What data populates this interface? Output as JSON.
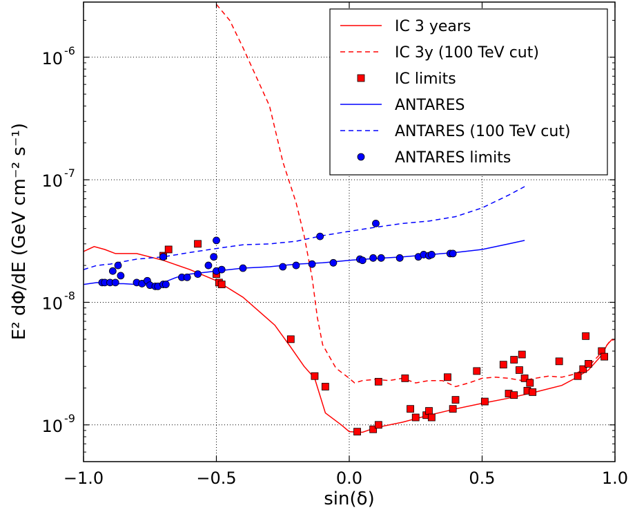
{
  "chart_data": {
    "type": "line",
    "xlabel": "sin(δ)",
    "ylabel": "E² dΦ/dE (GeV cm⁻² s⁻¹)",
    "xlim": [
      -1.0,
      1.0
    ],
    "ylim_log10": [
      -9.3,
      -5.55
    ],
    "yscale": "log",
    "grid": true,
    "legend_position": "top-right",
    "x_ticks": [
      {
        "value": -1.0,
        "label": "−1.0"
      },
      {
        "value": -0.5,
        "label": "−0.5"
      },
      {
        "value": 0.0,
        "label": "0.0"
      },
      {
        "value": 0.5,
        "label": "0.5"
      },
      {
        "value": 1.0,
        "label": "1.0"
      }
    ],
    "y_ticks": [
      {
        "exp": -9,
        "label": "10",
        "sup": "-9"
      },
      {
        "exp": -8,
        "label": "10",
        "sup": "-8"
      },
      {
        "exp": -7,
        "label": "10",
        "sup": "-7"
      },
      {
        "exp": -6,
        "label": "10",
        "sup": "-6"
      }
    ],
    "series": [
      {
        "name": "IC 3 years",
        "kind": "line",
        "color": "#ff0000",
        "dash": "solid",
        "points": [
          [
            -1.0,
            2.6e-08
          ],
          [
            -0.96,
            2.85e-08
          ],
          [
            -0.92,
            2.7e-08
          ],
          [
            -0.88,
            2.5e-08
          ],
          [
            -0.8,
            2.5e-08
          ],
          [
            -0.7,
            2.2e-08
          ],
          [
            -0.6,
            1.85e-08
          ],
          [
            -0.5,
            1.5e-08
          ],
          [
            -0.4,
            1.1e-08
          ],
          [
            -0.28,
            6.5e-09
          ],
          [
            -0.22,
            4.3e-09
          ],
          [
            -0.17,
            3e-09
          ],
          [
            -0.13,
            2.4e-09
          ],
          [
            -0.09,
            1.25e-09
          ],
          [
            -0.03,
            1e-09
          ],
          [
            0.0,
            8.8e-10
          ],
          [
            0.05,
            8.7e-10
          ],
          [
            0.1,
            9.5e-10
          ],
          [
            0.2,
            1.05e-09
          ],
          [
            0.3,
            1.2e-09
          ],
          [
            0.4,
            1.35e-09
          ],
          [
            0.5,
            1.5e-09
          ],
          [
            0.6,
            1.65e-09
          ],
          [
            0.7,
            1.85e-09
          ],
          [
            0.8,
            2.1e-09
          ],
          [
            0.85,
            2.4e-09
          ],
          [
            0.9,
            2.8e-09
          ],
          [
            0.95,
            3.7e-09
          ],
          [
            0.97,
            4.5e-09
          ],
          [
            0.99,
            5e-09
          ]
        ]
      },
      {
        "name": "IC 3y (100 TeV cut)",
        "kind": "line",
        "color": "#ff0000",
        "dash": "dashed",
        "points": [
          [
            -0.5,
            2.7e-06
          ],
          [
            -0.45,
            2e-06
          ],
          [
            -0.4,
            1.2e-06
          ],
          [
            -0.3,
            4e-07
          ],
          [
            -0.25,
            1.4e-07
          ],
          [
            -0.2,
            6.5e-08
          ],
          [
            -0.17,
            3.5e-08
          ],
          [
            -0.14,
            1.6e-08
          ],
          [
            -0.12,
            7.5e-09
          ],
          [
            -0.1,
            4.5e-09
          ],
          [
            -0.05,
            2.9e-09
          ],
          [
            0.0,
            2.4e-09
          ],
          [
            0.02,
            2.2e-09
          ],
          [
            0.05,
            2.3e-09
          ],
          [
            0.1,
            2.35e-09
          ],
          [
            0.15,
            2.3e-09
          ],
          [
            0.2,
            2.4e-09
          ],
          [
            0.25,
            2.2e-09
          ],
          [
            0.3,
            2.3e-09
          ],
          [
            0.35,
            2.3e-09
          ],
          [
            0.4,
            2.05e-09
          ],
          [
            0.45,
            2.2e-09
          ],
          [
            0.5,
            2.4e-09
          ],
          [
            0.55,
            2.45e-09
          ],
          [
            0.6,
            2.4e-09
          ],
          [
            0.65,
            2.3e-09
          ],
          [
            0.7,
            2.4e-09
          ],
          [
            0.75,
            2.5e-09
          ],
          [
            0.8,
            2.45e-09
          ],
          [
            0.85,
            2.6e-09
          ],
          [
            0.9,
            3e-09
          ],
          [
            0.95,
            3.9e-09
          ],
          [
            0.98,
            4.8e-09
          ],
          [
            1.0,
            5e-09
          ]
        ]
      },
      {
        "name": "IC limits",
        "kind": "markers",
        "marker": "square",
        "color": "#ff0000",
        "points": [
          [
            -0.7,
            2.4e-08
          ],
          [
            -0.68,
            2.7e-08
          ],
          [
            -0.57,
            3e-08
          ],
          [
            -0.5,
            1.7e-08
          ],
          [
            -0.49,
            1.45e-08
          ],
          [
            -0.48,
            1.4e-08
          ],
          [
            -0.22,
            5e-09
          ],
          [
            -0.13,
            2.5e-09
          ],
          [
            -0.09,
            2.05e-09
          ],
          [
            0.03,
            8.8e-10
          ],
          [
            0.09,
            9.2e-10
          ],
          [
            0.11,
            1e-09
          ],
          [
            0.11,
            2.25e-09
          ],
          [
            0.21,
            2.4e-09
          ],
          [
            0.23,
            1.35e-09
          ],
          [
            0.25,
            1.15e-09
          ],
          [
            0.29,
            1.2e-09
          ],
          [
            0.3,
            1.3e-09
          ],
          [
            0.31,
            1.15e-09
          ],
          [
            0.37,
            2.45e-09
          ],
          [
            0.39,
            1.35e-09
          ],
          [
            0.4,
            1.6e-09
          ],
          [
            0.48,
            2.75e-09
          ],
          [
            0.51,
            1.55e-09
          ],
          [
            0.58,
            3.1e-09
          ],
          [
            0.6,
            1.8e-09
          ],
          [
            0.62,
            1.75e-09
          ],
          [
            0.62,
            3.4e-09
          ],
          [
            0.64,
            2.8e-09
          ],
          [
            0.65,
            3.75e-09
          ],
          [
            0.66,
            2.4e-09
          ],
          [
            0.67,
            1.9e-09
          ],
          [
            0.68,
            2.2e-09
          ],
          [
            0.69,
            1.85e-09
          ],
          [
            0.79,
            3.3e-09
          ],
          [
            0.86,
            2.5e-09
          ],
          [
            0.88,
            2.85e-09
          ],
          [
            0.89,
            5.3e-09
          ],
          [
            0.9,
            3.15e-09
          ],
          [
            0.95,
            4e-09
          ],
          [
            0.96,
            3.6e-09
          ]
        ]
      },
      {
        "name": "ANTARES",
        "kind": "line",
        "color": "#0000ff",
        "dash": "solid",
        "points": [
          [
            -1.0,
            1.4e-08
          ],
          [
            -0.95,
            1.45e-08
          ],
          [
            -0.9,
            1.42e-08
          ],
          [
            -0.85,
            1.42e-08
          ],
          [
            -0.8,
            1.4e-08
          ],
          [
            -0.75,
            1.38e-08
          ],
          [
            -0.7,
            1.45e-08
          ],
          [
            -0.65,
            1.6e-08
          ],
          [
            -0.6,
            1.7e-08
          ],
          [
            -0.5,
            1.8e-08
          ],
          [
            -0.4,
            1.9e-08
          ],
          [
            -0.3,
            1.95e-08
          ],
          [
            -0.2,
            2.05e-08
          ],
          [
            -0.1,
            2.1e-08
          ],
          [
            0.0,
            2.2e-08
          ],
          [
            0.1,
            2.28e-08
          ],
          [
            0.2,
            2.35e-08
          ],
          [
            0.3,
            2.45e-08
          ],
          [
            0.4,
            2.55e-08
          ],
          [
            0.5,
            2.7e-08
          ],
          [
            0.6,
            3e-08
          ],
          [
            0.66,
            3.2e-08
          ]
        ]
      },
      {
        "name": "ANTARES (100 TeV cut)",
        "kind": "line",
        "color": "#0000ff",
        "dash": "dashed",
        "points": [
          [
            -1.0,
            1.85e-08
          ],
          [
            -0.95,
            2e-08
          ],
          [
            -0.9,
            2.05e-08
          ],
          [
            -0.85,
            2.15e-08
          ],
          [
            -0.8,
            2.25e-08
          ],
          [
            -0.7,
            2.35e-08
          ],
          [
            -0.6,
            2.55e-08
          ],
          [
            -0.5,
            2.75e-08
          ],
          [
            -0.4,
            2.95e-08
          ],
          [
            -0.3,
            3e-08
          ],
          [
            -0.2,
            3.15e-08
          ],
          [
            -0.1,
            3.5e-08
          ],
          [
            0.0,
            3.8e-08
          ],
          [
            0.1,
            4.1e-08
          ],
          [
            0.2,
            4.4e-08
          ],
          [
            0.3,
            4.6e-08
          ],
          [
            0.4,
            5e-08
          ],
          [
            0.5,
            5.9e-08
          ],
          [
            0.6,
            7.5e-08
          ],
          [
            0.66,
            8.8e-08
          ]
        ]
      },
      {
        "name": "ANTARES limits",
        "kind": "markers",
        "marker": "circle",
        "color": "#0000ff",
        "points": [
          [
            -0.93,
            1.45e-08
          ],
          [
            -0.92,
            1.45e-08
          ],
          [
            -0.9,
            1.45e-08
          ],
          [
            -0.89,
            1.8e-08
          ],
          [
            -0.87,
            2e-08
          ],
          [
            -0.86,
            1.65e-08
          ],
          [
            -0.88,
            1.45e-08
          ],
          [
            -0.8,
            1.45e-08
          ],
          [
            -0.78,
            1.42e-08
          ],
          [
            -0.76,
            1.5e-08
          ],
          [
            -0.75,
            1.38e-08
          ],
          [
            -0.73,
            1.35e-08
          ],
          [
            -0.72,
            1.35e-08
          ],
          [
            -0.7,
            1.4e-08
          ],
          [
            -0.69,
            1.4e-08
          ],
          [
            -0.7,
            2.35e-08
          ],
          [
            -0.63,
            1.6e-08
          ],
          [
            -0.61,
            1.6e-08
          ],
          [
            -0.57,
            1.7e-08
          ],
          [
            -0.53,
            2e-08
          ],
          [
            -0.51,
            2.35e-08
          ],
          [
            -0.5,
            3.2e-08
          ],
          [
            -0.5,
            1.8e-08
          ],
          [
            -0.48,
            1.85e-08
          ],
          [
            -0.4,
            1.9e-08
          ],
          [
            -0.25,
            1.95e-08
          ],
          [
            -0.2,
            2e-08
          ],
          [
            -0.14,
            2.05e-08
          ],
          [
            -0.11,
            3.45e-08
          ],
          [
            -0.06,
            2.1e-08
          ],
          [
            0.04,
            2.25e-08
          ],
          [
            0.05,
            2.2e-08
          ],
          [
            0.09,
            2.3e-08
          ],
          [
            0.1,
            4.4e-08
          ],
          [
            0.12,
            2.3e-08
          ],
          [
            0.19,
            2.3e-08
          ],
          [
            0.26,
            2.35e-08
          ],
          [
            0.28,
            2.45e-08
          ],
          [
            0.3,
            2.4e-08
          ],
          [
            0.31,
            2.45e-08
          ],
          [
            0.38,
            2.5e-08
          ],
          [
            0.39,
            2.5e-08
          ]
        ]
      }
    ]
  }
}
